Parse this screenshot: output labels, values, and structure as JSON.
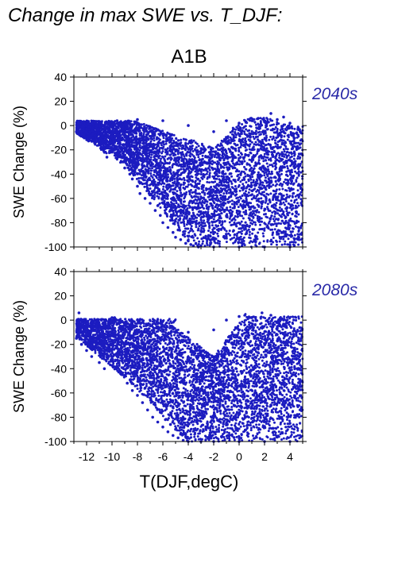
{
  "header": {
    "title": "Change in max SWE vs. T_DJF:",
    "scenario": "A1B"
  },
  "chart_data": [
    {
      "type": "scatter",
      "panel_label": "2040s",
      "ylabel": "SWE Change (%)",
      "xlabel": "",
      "xlim": [
        -13,
        5
      ],
      "ylim": [
        -100,
        40
      ],
      "yticks": [
        -100,
        -80,
        -60,
        -40,
        -20,
        0,
        20,
        40
      ],
      "xticks": [
        -12,
        -10,
        -8,
        -6,
        -4,
        -2,
        0,
        2,
        4
      ],
      "show_xtick_labels": false,
      "grid": false,
      "point_color": "#1c1cc0",
      "series": [
        {
          "values": [
            [
              -12.8,
              -5
            ],
            [
              -12.6,
              2
            ],
            [
              -12.4,
              -1
            ],
            [
              -12.2,
              3
            ],
            [
              -12.0,
              -3
            ],
            [
              -11.8,
              1
            ],
            [
              -11.6,
              -8
            ],
            [
              -11.4,
              -12
            ],
            [
              -11.2,
              0
            ],
            [
              -11.0,
              -15
            ],
            [
              -10.8,
              -18
            ],
            [
              -10.6,
              -22
            ],
            [
              -10.4,
              -26
            ],
            [
              -10.2,
              -14
            ],
            [
              -10.0,
              -10
            ],
            [
              -9.8,
              -20
            ],
            [
              -9.6,
              4
            ],
            [
              -9.4,
              2
            ],
            [
              -9.2,
              -30
            ],
            [
              -9.0,
              -35
            ],
            [
              -8.8,
              -28
            ],
            [
              -8.6,
              -40
            ],
            [
              -8.4,
              -44
            ],
            [
              -8.2,
              -38
            ],
            [
              -8.0,
              -50
            ],
            [
              -7.8,
              -56
            ],
            [
              -7.6,
              -48
            ],
            [
              -7.4,
              -60
            ],
            [
              -7.2,
              -52
            ],
            [
              -7.0,
              -64
            ],
            [
              -6.8,
              -58
            ],
            [
              -6.6,
              -70
            ],
            [
              -6.4,
              -66
            ],
            [
              -6.2,
              -74
            ],
            [
              -6.0,
              -80
            ],
            [
              -5.8,
              -72
            ],
            [
              -5.6,
              -84
            ],
            [
              -5.4,
              -78
            ],
            [
              -5.2,
              -88
            ],
            [
              -5.0,
              -92
            ],
            [
              -4.8,
              -86
            ],
            [
              -4.6,
              -94
            ],
            [
              -4.4,
              -90
            ],
            [
              -4.2,
              -97
            ],
            [
              -4.0,
              -95
            ],
            [
              -3.8,
              -98
            ],
            [
              -3.6,
              -99
            ],
            [
              -3.4,
              -97
            ],
            [
              -3.2,
              -100
            ],
            [
              -3.0,
              -99
            ],
            [
              -2.0,
              -100
            ],
            [
              0.0,
              -100
            ],
            [
              2.0,
              -100
            ],
            [
              4.0,
              -100
            ],
            [
              -10.0,
              3
            ],
            [
              -8.0,
              5
            ],
            [
              -6.0,
              4
            ],
            [
              -4.0,
              0
            ],
            [
              -2.0,
              -5
            ],
            [
              0.0,
              2
            ],
            [
              1.0,
              4
            ],
            [
              2.0,
              3
            ],
            [
              2.5,
              10
            ],
            [
              3.0,
              5
            ],
            [
              4.0,
              2
            ],
            [
              4.8,
              -5
            ],
            [
              -1.0,
              4
            ],
            [
              1.5,
              6
            ],
            [
              3.5,
              7
            ],
            [
              -6.5,
              -30
            ],
            [
              -5.0,
              -40
            ],
            [
              -3.0,
              -60
            ],
            [
              -1.0,
              -50
            ],
            [
              1.0,
              -40
            ],
            [
              3.0,
              -60
            ],
            [
              4.5,
              -80
            ],
            [
              -2.5,
              -75
            ],
            [
              0.5,
              -85
            ]
          ]
        }
      ]
    },
    {
      "type": "scatter",
      "panel_label": "2080s",
      "ylabel": "SWE Change (%)",
      "xlabel": "T(DJF,degC)",
      "xlim": [
        -13,
        5
      ],
      "ylim": [
        -100,
        40
      ],
      "yticks": [
        -100,
        -80,
        -60,
        -40,
        -20,
        0,
        20,
        40
      ],
      "xticks": [
        -12,
        -10,
        -8,
        -6,
        -4,
        -2,
        0,
        2,
        4
      ],
      "xtick_labels": [
        "-12",
        "-10",
        "-8",
        "-6",
        "-4",
        "-2",
        "0",
        "2",
        "4"
      ],
      "grid": false,
      "point_color": "#1c1cc0",
      "series": [
        {
          "values": [
            [
              -12.8,
              -15
            ],
            [
              -12.6,
              6
            ],
            [
              -12.4,
              -20
            ],
            [
              -12.2,
              -2
            ],
            [
              -12.0,
              -25
            ],
            [
              -11.8,
              -10
            ],
            [
              -11.6,
              -30
            ],
            [
              -11.4,
              -22
            ],
            [
              -11.2,
              -5
            ],
            [
              -11.0,
              -35
            ],
            [
              -10.8,
              -18
            ],
            [
              -10.6,
              -40
            ],
            [
              -10.4,
              -28
            ],
            [
              -10.2,
              -12
            ],
            [
              -10.0,
              -32
            ],
            [
              -9.8,
              2
            ],
            [
              -9.6,
              -38
            ],
            [
              -9.4,
              0
            ],
            [
              -9.2,
              -45
            ],
            [
              -9.0,
              -20
            ],
            [
              -8.8,
              -52
            ],
            [
              -8.6,
              -30
            ],
            [
              -8.4,
              -58
            ],
            [
              -8.2,
              -44
            ],
            [
              -8.0,
              -62
            ],
            [
              -7.8,
              -50
            ],
            [
              -7.6,
              -68
            ],
            [
              -7.4,
              -56
            ],
            [
              -7.2,
              -74
            ],
            [
              -7.0,
              -64
            ],
            [
              -6.8,
              -80
            ],
            [
              -6.6,
              -70
            ],
            [
              -6.4,
              -84
            ],
            [
              -6.2,
              -76
            ],
            [
              -6.0,
              -88
            ],
            [
              -5.8,
              -82
            ],
            [
              -5.6,
              -92
            ],
            [
              -5.4,
              -86
            ],
            [
              -5.2,
              -95
            ],
            [
              -5.0,
              -90
            ],
            [
              -4.8,
              -97
            ],
            [
              -4.6,
              -94
            ],
            [
              -4.4,
              -99
            ],
            [
              -4.2,
              -96
            ],
            [
              -4.0,
              -100
            ],
            [
              -3.0,
              -100
            ],
            [
              -2.0,
              -100
            ],
            [
              0.0,
              -100
            ],
            [
              2.0,
              -100
            ],
            [
              4.0,
              -100
            ],
            [
              -10.0,
              2
            ],
            [
              -8.0,
              0
            ],
            [
              -6.0,
              -1
            ],
            [
              -4.0,
              -10
            ],
            [
              -2.0,
              -8
            ],
            [
              -1.0,
              0
            ],
            [
              0.0,
              3
            ],
            [
              1.0,
              2
            ],
            [
              1.8,
              6
            ],
            [
              2.5,
              4
            ],
            [
              3.5,
              0
            ],
            [
              4.5,
              -10
            ],
            [
              -0.5,
              -20
            ],
            [
              1.2,
              -15
            ],
            [
              3.0,
              -30
            ],
            [
              4.2,
              -45
            ],
            [
              -6.5,
              -40
            ],
            [
              -5.0,
              -50
            ],
            [
              -3.0,
              -65
            ],
            [
              -1.5,
              -60
            ],
            [
              0.5,
              -55
            ],
            [
              2.5,
              -70
            ],
            [
              4.0,
              -85
            ],
            [
              -2.5,
              -85
            ]
          ]
        }
      ]
    }
  ]
}
